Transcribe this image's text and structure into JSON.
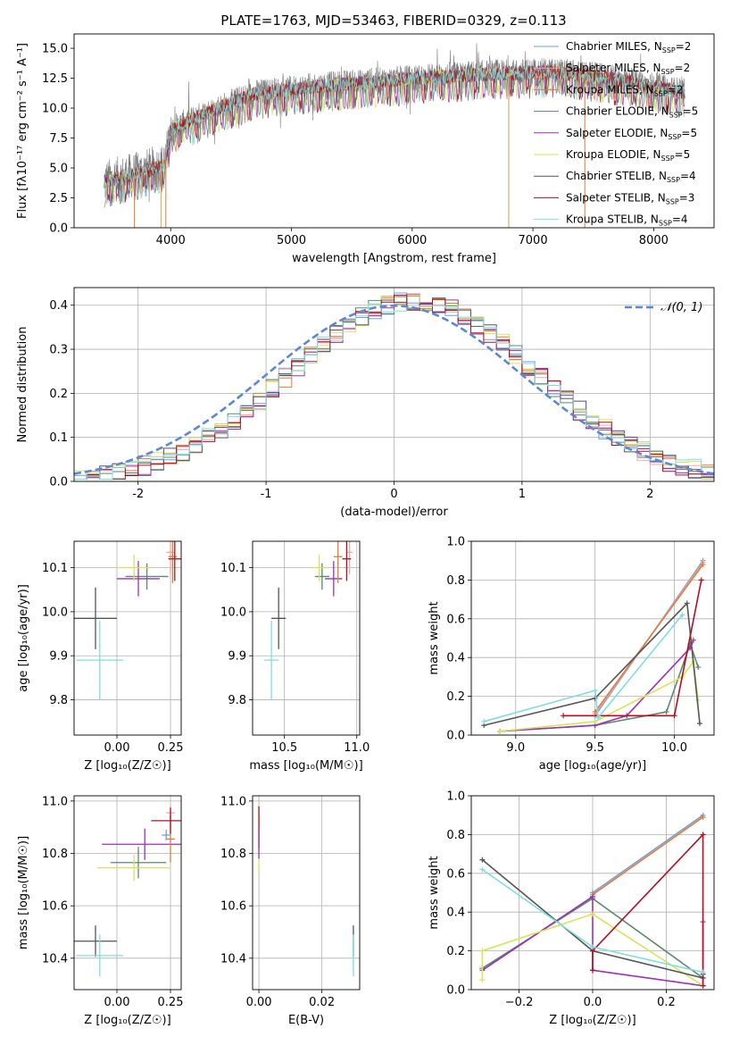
{
  "figure": {
    "title": "PLATE=1763, MJD=53463, FIBERID=0329, z=0.113"
  },
  "legend_entries": [
    {
      "label": "Chabrier MILES, N",
      "sub": "SSP",
      "suffix": "=2",
      "color": "#6f9fd8"
    },
    {
      "label": "Salpeter MILES, N",
      "sub": "SSP",
      "suffix": "=2",
      "color": "#f3a7a7"
    },
    {
      "label": "Kroupa MILES, N",
      "sub": "SSP",
      "suffix": "=2",
      "color": "#e07b39"
    },
    {
      "label": "Chabrier ELODIE, N",
      "sub": "SSP",
      "suffix": "=5",
      "color": "#5a8a6e"
    },
    {
      "label": "Salpeter ELODIE, N",
      "sub": "SSP",
      "suffix": "=5",
      "color": "#9b30b6"
    },
    {
      "label": "Kroupa ELODIE, N",
      "sub": "SSP",
      "suffix": "=5",
      "color": "#d9e35a"
    },
    {
      "label": "Chabrier STELIB, N",
      "sub": "SSP",
      "suffix": "=4",
      "color": "#555555"
    },
    {
      "label": "Salpeter STELIB, N",
      "sub": "SSP",
      "suffix": "=3",
      "color": "#b01020"
    },
    {
      "label": "Kroupa STELIB, N",
      "sub": "SSP",
      "suffix": "=4",
      "color": "#7fdde0"
    }
  ],
  "chart_data": [
    {
      "id": "spectrum",
      "type": "line",
      "xlabel": "wavelength [Angstrom, rest frame]",
      "ylabel": "Flux [fλ10⁻¹⁷ erg cm⁻² s⁻¹ A⁻¹]",
      "xlim": [
        3200,
        8500
      ],
      "ylim": [
        0,
        16.2
      ],
      "xticks": [
        4000,
        5000,
        6000,
        7000,
        8000
      ],
      "yticks": [
        0.0,
        2.5,
        5.0,
        7.5,
        10.0,
        12.5,
        15.0
      ],
      "continuum": [
        [
          3450,
          3.8
        ],
        [
          3700,
          4.4
        ],
        [
          3950,
          5.2
        ],
        [
          4000,
          8.2
        ],
        [
          4300,
          9.6
        ],
        [
          4700,
          11.2
        ],
        [
          5200,
          11.8
        ],
        [
          5700,
          12.2
        ],
        [
          6200,
          12.6
        ],
        [
          6700,
          12.9
        ],
        [
          7200,
          13.0
        ],
        [
          7700,
          12.4
        ],
        [
          8250,
          11.3
        ]
      ]
    },
    {
      "id": "residuals",
      "type": "line",
      "xlabel": "(data-model)/error",
      "ylabel": "Normed distribution",
      "xlim": [
        -2.5,
        2.5
      ],
      "ylim": [
        0,
        0.44
      ],
      "xticks": [
        -2,
        -1,
        0,
        1,
        2
      ],
      "yticks": [
        0.0,
        0.1,
        0.2,
        0.3,
        0.4
      ],
      "reference_label": "𝒩(0, 1)",
      "reference_color": "#5b87d6"
    },
    {
      "id": "z-age",
      "type": "scatter",
      "xlabel": "Z [log₁₀(Z/Z☉)]",
      "ylabel": "age  [log₁₀(age/yr)]",
      "xlim": [
        -0.2,
        0.3
      ],
      "ylim": [
        9.72,
        10.16
      ],
      "xticks": [
        0.0,
        0.25
      ],
      "yticks": [
        9.8,
        9.9,
        10.0,
        10.1
      ],
      "points": [
        {
          "x": -0.1,
          "y": 9.985,
          "ex": 0.1,
          "ey": 0.07,
          "c": "#555555"
        },
        {
          "x": -0.08,
          "y": 9.89,
          "ex": 0.11,
          "ey": 0.09,
          "c": "#7fdde0"
        },
        {
          "x": 0.14,
          "y": 10.08,
          "ex": 0.1,
          "ey": 0.03,
          "c": "#5a8a6e"
        },
        {
          "x": 0.1,
          "y": 10.075,
          "ex": 0.1,
          "ey": 0.04,
          "c": "#9b30b6"
        },
        {
          "x": 0.08,
          "y": 10.1,
          "ex": 0.08,
          "ey": 0.03,
          "c": "#d9e35a"
        },
        {
          "x": 0.25,
          "y": 10.135,
          "ex": 0.02,
          "ey": 0.05,
          "c": "#f3a7a7"
        },
        {
          "x": 0.26,
          "y": 10.125,
          "ex": 0.02,
          "ey": 0.06,
          "c": "#e07b39"
        },
        {
          "x": 0.27,
          "y": 10.12,
          "ex": 0.03,
          "ey": 0.05,
          "c": "#b01020"
        }
      ]
    },
    {
      "id": "mass-age",
      "type": "scatter",
      "xlabel": "mass [log₁₀(M/M☉)]",
      "ylabel": "",
      "xlim": [
        10.28,
        11.02
      ],
      "ylim": [
        9.72,
        10.16
      ],
      "xticks": [
        10.5,
        11.0
      ],
      "yticks": [
        9.8,
        9.9,
        10.0,
        10.1
      ],
      "points": [
        {
          "x": 10.46,
          "y": 9.985,
          "ex": 0.05,
          "ey": 0.07,
          "c": "#555555"
        },
        {
          "x": 10.41,
          "y": 9.89,
          "ex": 0.05,
          "ey": 0.09,
          "c": "#7fdde0"
        },
        {
          "x": 10.76,
          "y": 10.08,
          "ex": 0.05,
          "ey": 0.03,
          "c": "#5a8a6e"
        },
        {
          "x": 10.84,
          "y": 10.075,
          "ex": 0.06,
          "ey": 0.04,
          "c": "#9b30b6"
        },
        {
          "x": 10.74,
          "y": 10.1,
          "ex": 0.06,
          "ey": 0.03,
          "c": "#d9e35a"
        },
        {
          "x": 10.95,
          "y": 10.135,
          "ex": 0.02,
          "ey": 0.05,
          "c": "#f3a7a7"
        },
        {
          "x": 10.87,
          "y": 10.125,
          "ex": 0.03,
          "ey": 0.06,
          "c": "#e07b39"
        },
        {
          "x": 10.93,
          "y": 10.12,
          "ex": 0.03,
          "ey": 0.05,
          "c": "#b01020"
        }
      ]
    },
    {
      "id": "age-weight",
      "type": "line",
      "xlabel": "age  [log₁₀(age/yr)]",
      "ylabel": "mass weight",
      "xlim": [
        8.72,
        10.25
      ],
      "ylim": [
        0,
        1.0
      ],
      "xticks": [
        9.0,
        9.5,
        10.0
      ],
      "yticks": [
        0.0,
        0.2,
        0.4,
        0.6,
        0.8,
        1.0
      ],
      "series": [
        {
          "c": "#6f9fd8",
          "x": [
            9.5,
            10.18
          ],
          "y": [
            0.1,
            0.9
          ]
        },
        {
          "c": "#f3a7a7",
          "x": [
            9.5,
            10.18
          ],
          "y": [
            0.11,
            0.89
          ]
        },
        {
          "c": "#e07b39",
          "x": [
            9.5,
            10.18
          ],
          "y": [
            0.12,
            0.88
          ]
        },
        {
          "c": "#5a8a6e",
          "x": [
            8.9,
            9.5,
            9.95,
            10.1,
            10.15
          ],
          "y": [
            0.02,
            0.05,
            0.12,
            0.47,
            0.35
          ]
        },
        {
          "c": "#9b30b6",
          "x": [
            8.9,
            9.5,
            9.7,
            10.1,
            10.12
          ],
          "y": [
            0.02,
            0.05,
            0.1,
            0.45,
            0.49
          ]
        },
        {
          "c": "#d9e35a",
          "x": [
            8.9,
            9.5,
            10.05,
            10.12,
            10.15
          ],
          "y": [
            0.02,
            0.07,
            0.3,
            0.38,
            0.18
          ]
        },
        {
          "c": "#555555",
          "x": [
            8.8,
            9.5,
            10.08,
            10.16
          ],
          "y": [
            0.05,
            0.19,
            0.68,
            0.06
          ]
        },
        {
          "c": "#b01020",
          "x": [
            9.3,
            10.0,
            10.17
          ],
          "y": [
            0.1,
            0.1,
            0.8
          ]
        },
        {
          "c": "#7fdde0",
          "x": [
            8.8,
            9.5,
            9.52,
            10.05
          ],
          "y": [
            0.07,
            0.23,
            0.09,
            0.62
          ]
        }
      ]
    },
    {
      "id": "z-mass",
      "type": "scatter",
      "xlabel": "Z [log₁₀(Z/Z☉)]",
      "ylabel": "mass [log₁₀(M/M☉)]",
      "xlim": [
        -0.2,
        0.3
      ],
      "ylim": [
        10.28,
        11.02
      ],
      "xticks": [
        0.0,
        0.25
      ],
      "yticks": [
        10.4,
        10.6,
        10.8,
        11.0
      ],
      "points": [
        {
          "x": -0.1,
          "y": 10.465,
          "ex": 0.1,
          "ey": 0.06,
          "c": "#555555"
        },
        {
          "x": -0.08,
          "y": 10.41,
          "ex": 0.11,
          "ey": 0.08,
          "c": "#7fdde0"
        },
        {
          "x": 0.1,
          "y": 10.765,
          "ex": 0.13,
          "ey": 0.06,
          "c": "#5a8a6e"
        },
        {
          "x": 0.13,
          "y": 10.835,
          "ex": 0.2,
          "ey": 0.06,
          "c": "#9b30b6"
        },
        {
          "x": 0.08,
          "y": 10.745,
          "ex": 0.17,
          "ey": 0.05,
          "c": "#d9e35a"
        },
        {
          "x": 0.25,
          "y": 10.955,
          "ex": 0.02,
          "ey": 0.03,
          "c": "#f3a7a7"
        },
        {
          "x": 0.25,
          "y": 10.855,
          "ex": 0.02,
          "ey": 0.09,
          "c": "#e07b39"
        },
        {
          "x": 0.25,
          "y": 10.925,
          "ex": 0.09,
          "ey": 0.05,
          "c": "#b01020"
        },
        {
          "x": 0.23,
          "y": 10.87,
          "ex": 0.02,
          "ey": 0.02,
          "c": "#6f9fd8"
        }
      ]
    },
    {
      "id": "ebv-mass",
      "type": "scatter",
      "xlabel": "E(B-V)",
      "ylabel": "",
      "xlim": [
        -0.002,
        0.032
      ],
      "ylim": [
        10.28,
        11.02
      ],
      "xticks": [
        0.0,
        0.02
      ],
      "yticks": [
        10.4,
        10.6,
        10.8,
        11.0
      ],
      "points": [
        {
          "x": 0.0,
          "y": 10.85,
          "ex": 0,
          "ey": 0.13,
          "c": "#d9e35a"
        },
        {
          "x": 0.0,
          "y": 10.9,
          "ex": 0,
          "ey": 0.08,
          "c": "#b01020"
        },
        {
          "x": 0.0,
          "y": 10.84,
          "ex": 0,
          "ey": 0.06,
          "c": "#9b30b6"
        },
        {
          "x": 0.03,
          "y": 10.465,
          "ex": 0,
          "ey": 0.06,
          "c": "#555555"
        },
        {
          "x": 0.03,
          "y": 10.41,
          "ex": 0,
          "ey": 0.08,
          "c": "#7fdde0"
        }
      ]
    },
    {
      "id": "z-weight",
      "type": "line",
      "xlabel": "Z [log₁₀(Z/Z☉)]",
      "ylabel": "mass weight",
      "xlim": [
        -0.33,
        0.33
      ],
      "ylim": [
        0,
        1.0
      ],
      "xticks": [
        -0.2,
        0.0,
        0.2
      ],
      "yticks": [
        0.0,
        0.2,
        0.4,
        0.6,
        0.8,
        1.0
      ],
      "series": [
        {
          "c": "#6f9fd8",
          "x": [
            0.0,
            0.3
          ],
          "y": [
            0.5,
            0.9
          ]
        },
        {
          "c": "#e07b39",
          "x": [
            0.0,
            0.3
          ],
          "y": [
            0.49,
            0.89
          ]
        },
        {
          "c": "#5a8a6e",
          "x": [
            -0.3,
            0.0,
            0.3
          ],
          "y": [
            0.11,
            0.47,
            0.06
          ]
        },
        {
          "c": "#9b30b6",
          "x": [
            -0.3,
            0.0,
            0.0,
            0.3,
            0.3
          ],
          "y": [
            0.1,
            0.48,
            0.1,
            0.02,
            0.35
          ]
        },
        {
          "c": "#d9e35a",
          "x": [
            -0.3,
            -0.3,
            0.0,
            0.3
          ],
          "y": [
            0.05,
            0.2,
            0.39,
            0.02
          ]
        },
        {
          "c": "#555555",
          "x": [
            -0.3,
            0.0,
            0.3,
            0.3
          ],
          "y": [
            0.67,
            0.2,
            0.06,
            0.08
          ]
        },
        {
          "c": "#b01020",
          "x": [
            0.0,
            0.0,
            0.3,
            0.3
          ],
          "y": [
            0.1,
            0.2,
            0.8,
            0.02
          ]
        },
        {
          "c": "#7fdde0",
          "x": [
            -0.3,
            0.0,
            0.3
          ],
          "y": [
            0.62,
            0.22,
            0.09
          ]
        }
      ]
    }
  ]
}
